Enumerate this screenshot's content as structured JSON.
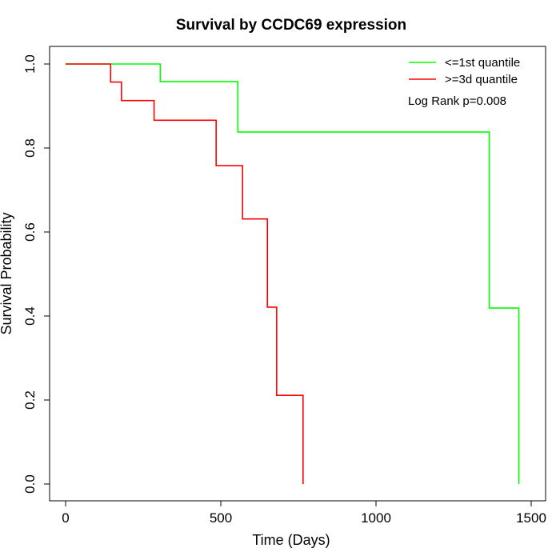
{
  "chart_data": {
    "type": "line",
    "title": "Survival by CCDC69 expression",
    "xlabel": "Time (Days)",
    "ylabel": "Survival Probability",
    "xlim": [
      0,
      1500
    ],
    "ylim": [
      0,
      1
    ],
    "x_ticks": [
      "0",
      "500",
      "1000",
      "1500"
    ],
    "y_ticks": [
      "0.0",
      "0.2",
      "0.4",
      "0.6",
      "0.8",
      "1.0"
    ],
    "legend_position": "top-right",
    "annotation": "Log Rank p=0.008",
    "series": [
      {
        "name": "<=1st quantile",
        "color": "#00ff00",
        "step_x": [
          0,
          305,
          555,
          1365,
          1460,
          1460
        ],
        "step_y": [
          1.0,
          0.958,
          0.838,
          0.419,
          0.419,
          0.0
        ]
      },
      {
        "name": ">=3d quantile",
        "color": "#ff0000",
        "step_x": [
          0,
          145,
          180,
          285,
          485,
          570,
          650,
          680,
          765,
          765
        ],
        "step_y": [
          1.0,
          0.957,
          0.913,
          0.866,
          0.758,
          0.631,
          0.421,
          0.211,
          0.211,
          0.0
        ]
      }
    ]
  }
}
